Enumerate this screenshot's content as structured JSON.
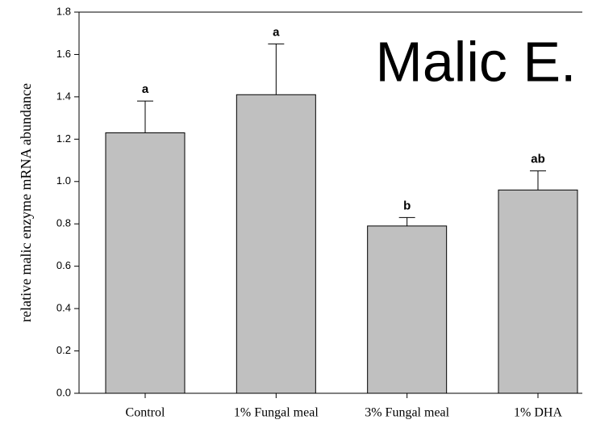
{
  "chart_data": {
    "type": "bar",
    "categories": [
      "Control",
      "1% Fungal meal",
      "3% Fungal meal",
      "1% DHA"
    ],
    "values": [
      1.23,
      1.41,
      0.79,
      0.96
    ],
    "errors": [
      0.15,
      0.24,
      0.04,
      0.09
    ],
    "annotations": [
      "a",
      "a",
      "b",
      "ab"
    ],
    "text_annotation": "Malic E.",
    "ylabel": "relative malic enzyme mRNA abundance",
    "color": "#c0c0c0",
    "ylim": [
      0,
      1.8
    ],
    "yticks": [
      {
        "value": 0,
        "label": "0.0"
      },
      0.2,
      0.4,
      0.6,
      0.8,
      {
        "value": 1,
        "label": "1.0"
      },
      1.2,
      1.4,
      1.6,
      1.8
    ],
    "grid": false
  }
}
